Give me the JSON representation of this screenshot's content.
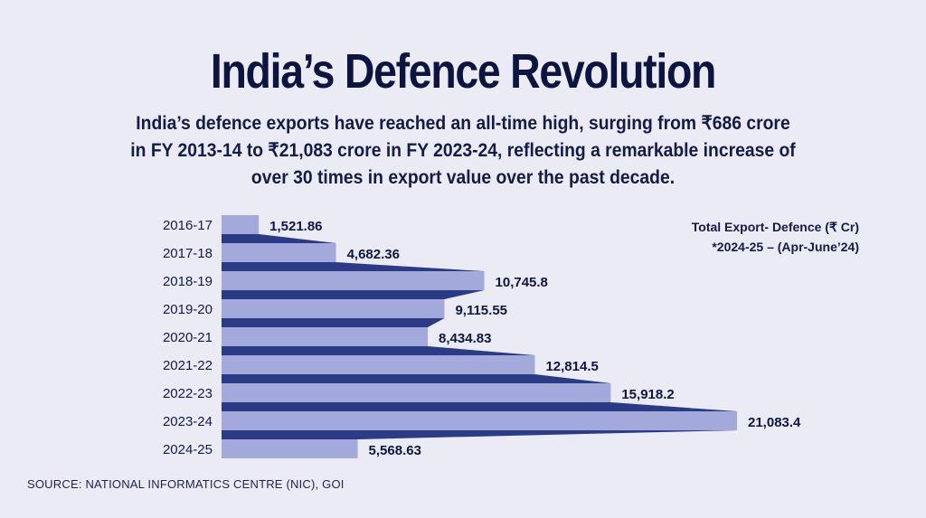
{
  "header": {
    "title": "India’s Defence Revolution",
    "subtitle": "India’s defence exports have reached an all-time high, surging from ₹686 crore in FY 2013-14 to ₹21,083 crore in FY 2023-24, reflecting a remarkable increase of over 30 times in export value over the past decade."
  },
  "legend": {
    "line1": "Total Export- Defence (₹ Cr)",
    "line2": "*2024-25 – (Apr-June’24)"
  },
  "source": "SOURCE: NATIONAL INFORMATICS CENTRE (NIC), GOI",
  "colors": {
    "bar": "#a3a9da",
    "connector": "#2c3b85",
    "background": "#eaebf5",
    "text": "#0f1640"
  },
  "chart_data": {
    "type": "bar",
    "orientation": "horizontal",
    "categories": [
      "2016-17",
      "2017-18",
      "2018-19",
      "2019-20",
      "2020-21",
      "2021-22",
      "2022-23",
      "2023-24",
      "2024-25"
    ],
    "values": [
      1521.86,
      4682.36,
      10745.8,
      9115.55,
      8434.83,
      12814.5,
      15918.2,
      21083.4,
      5568.63
    ],
    "value_labels": [
      "1,521.86",
      "4,682.36",
      "10,745.8",
      "9,115.55",
      "8,434.83",
      "12,814.5",
      "15,918.2",
      "21,083.4",
      "5,568.63"
    ],
    "xlim": [
      0,
      21083.4
    ],
    "grid": false
  }
}
